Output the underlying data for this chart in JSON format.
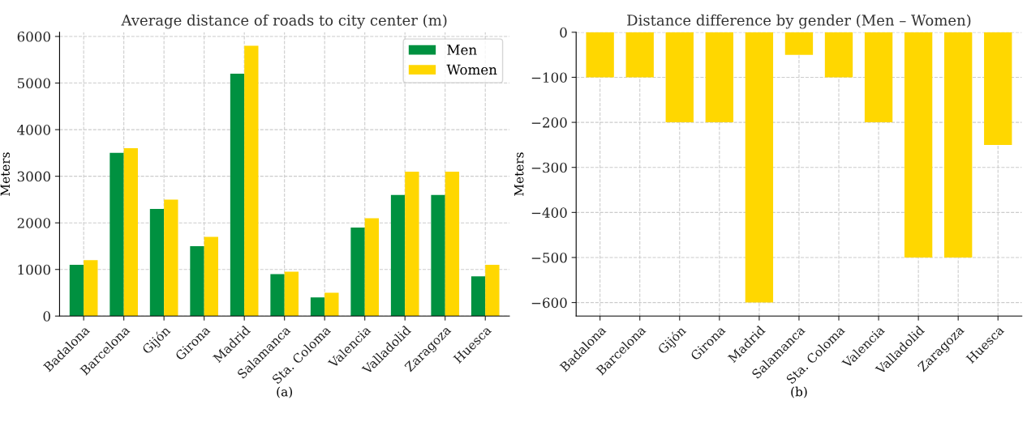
{
  "chart_data": [
    {
      "type": "bar",
      "title": "Average distance of roads to city center (m)",
      "xlabel": "(a)",
      "ylabel": "Meters",
      "categories": [
        "Badalona",
        "Barcelona",
        "Gijón",
        "Girona",
        "Madrid",
        "Salamanca",
        "Sta. Coloma",
        "Valencia",
        "Valladolid",
        "Zaragoza",
        "Huesca"
      ],
      "series": [
        {
          "name": "Men",
          "color": "#009140",
          "values": [
            1100,
            3500,
            2300,
            1500,
            5200,
            900,
            400,
            1900,
            2600,
            2600,
            850
          ]
        },
        {
          "name": "Women",
          "color": "#ffd700",
          "values": [
            1200,
            3600,
            2500,
            1700,
            5800,
            950,
            500,
            2100,
            3100,
            3100,
            1100
          ]
        }
      ],
      "ylim": [
        0,
        6090
      ],
      "yticks": [
        0,
        1000,
        2000,
        3000,
        4000,
        5000,
        6000
      ],
      "grid": true,
      "legend": "top right"
    },
    {
      "type": "bar",
      "title": "Distance difference by gender (Men – Women)",
      "xlabel": "(b)",
      "ylabel": "Meters",
      "categories": [
        "Badalona",
        "Barcelona",
        "Gijón",
        "Girona",
        "Madrid",
        "Salamanca",
        "Sta. Coloma",
        "Valencia",
        "Valladolid",
        "Zaragoza",
        "Huesca"
      ],
      "series": [
        {
          "color": "#ffd700",
          "values": [
            -100,
            -100,
            -200,
            -200,
            -600,
            -50,
            -100,
            -200,
            -500,
            -500,
            -250
          ]
        }
      ],
      "ylim": [
        -630,
        0
      ],
      "yticks": [
        {
          "value": -600,
          "label": "−600"
        },
        {
          "value": -500,
          "label": "−500"
        },
        {
          "value": -400,
          "label": "−400"
        },
        {
          "value": -300,
          "label": "−300"
        },
        {
          "value": -200,
          "label": "−200"
        },
        {
          "value": -100,
          "label": "−100"
        },
        0
      ],
      "grid": true
    }
  ]
}
